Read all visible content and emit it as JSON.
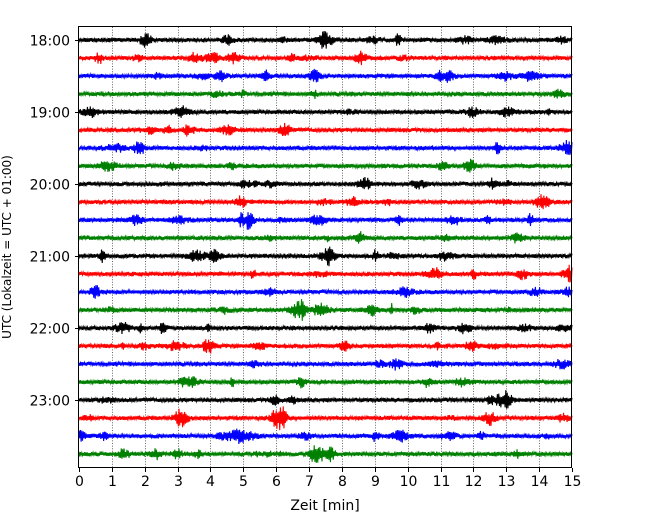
{
  "chart_data": {
    "type": "line",
    "title": "",
    "xlabel": "Zeit  [min]",
    "ylabel": "UTC (Lokalzeit = UTC + 01:00)",
    "xlim": [
      0,
      15
    ],
    "x_ticks": [
      0,
      1,
      2,
      3,
      4,
      5,
      6,
      7,
      8,
      9,
      10,
      11,
      12,
      13,
      14,
      15
    ],
    "x_tick_labels": [
      "0",
      "1",
      "2",
      "3",
      "4",
      "5",
      "6",
      "7",
      "8",
      "9",
      "10",
      "11",
      "12",
      "13",
      "14",
      "15"
    ],
    "y_tick_labels": [
      "18:00",
      "19:00",
      "20:00",
      "21:00",
      "22:00",
      "23:00"
    ],
    "y_tick_times": [
      "18:00",
      "19:00",
      "20:00",
      "21:00",
      "22:00",
      "23:00"
    ],
    "grid": "vertical dotted at each minute",
    "trace_duration_min": 15,
    "color_cycle": [
      "#000000",
      "#ff0000",
      "#0000ff",
      "#008000"
    ],
    "series": [
      {
        "start": "18:00",
        "color": "#000000"
      },
      {
        "start": "18:15",
        "color": "#ff0000"
      },
      {
        "start": "18:30",
        "color": "#0000ff"
      },
      {
        "start": "18:45",
        "color": "#008000"
      },
      {
        "start": "19:00",
        "color": "#000000"
      },
      {
        "start": "19:15",
        "color": "#ff0000"
      },
      {
        "start": "19:30",
        "color": "#0000ff"
      },
      {
        "start": "19:45",
        "color": "#008000"
      },
      {
        "start": "20:00",
        "color": "#000000"
      },
      {
        "start": "20:15",
        "color": "#ff0000"
      },
      {
        "start": "20:30",
        "color": "#0000ff"
      },
      {
        "start": "20:45",
        "color": "#008000"
      },
      {
        "start": "21:00",
        "color": "#000000"
      },
      {
        "start": "21:15",
        "color": "#ff0000"
      },
      {
        "start": "21:30",
        "color": "#0000ff"
      },
      {
        "start": "21:45",
        "color": "#008000"
      },
      {
        "start": "22:00",
        "color": "#000000"
      },
      {
        "start": "22:15",
        "color": "#ff0000"
      },
      {
        "start": "22:30",
        "color": "#0000ff"
      },
      {
        "start": "22:45",
        "color": "#008000"
      },
      {
        "start": "23:00",
        "color": "#000000"
      },
      {
        "start": "23:15",
        "color": "#ff0000"
      },
      {
        "start": "23:30",
        "color": "#0000ff"
      },
      {
        "start": "23:45",
        "color": "#008000"
      }
    ]
  }
}
